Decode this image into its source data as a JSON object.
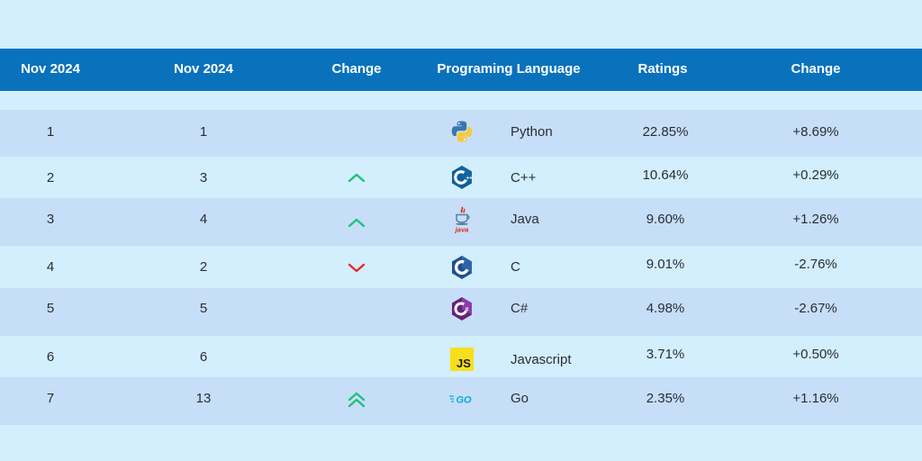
{
  "header": {
    "col1": "Nov 2024",
    "col2": "Nov 2024",
    "col3": "Change",
    "col4": "Programing Language",
    "col5": "Ratings",
    "col6": "Change"
  },
  "colors": {
    "header_bg": "#0a72bd",
    "row_dark": "#c7def8",
    "row_light": "#d3eefc",
    "arrow_up": "#1ec27a",
    "arrow_down": "#e52a2a"
  },
  "rows": [
    {
      "rank_now": "1",
      "rank_prev": "1",
      "change_icon": "none",
      "lang_icon": "python-logo-icon",
      "language": "Python",
      "rating": "22.85%",
      "change": "+8.69%"
    },
    {
      "rank_now": "2",
      "rank_prev": "3",
      "change_icon": "chevron-up-icon",
      "lang_icon": "cpp-logo-icon",
      "language": "C++",
      "rating": "10.64%",
      "change": "+0.29%"
    },
    {
      "rank_now": "3",
      "rank_prev": "4",
      "change_icon": "chevron-up-icon",
      "lang_icon": "java-logo-icon",
      "language": "Java",
      "rating": "9.60%",
      "change": "+1.26%"
    },
    {
      "rank_now": "4",
      "rank_prev": "2",
      "change_icon": "chevron-down-icon",
      "lang_icon": "c-logo-icon",
      "language": "C",
      "rating": "9.01%",
      "change": "-2.76%"
    },
    {
      "rank_now": "5",
      "rank_prev": "5",
      "change_icon": "none",
      "lang_icon": "csharp-logo-icon",
      "language": "C#",
      "rating": "4.98%",
      "change": "-2.67%"
    },
    {
      "rank_now": "6",
      "rank_prev": "6",
      "change_icon": "none",
      "lang_icon": "javascript-logo-icon",
      "language": "Javascript",
      "rating": "3.71%",
      "change": "+0.50%"
    },
    {
      "rank_now": "7",
      "rank_prev": "13",
      "change_icon": "double-chevron-up-icon",
      "lang_icon": "go-logo-icon",
      "language": "Go",
      "rating": "2.35%",
      "change": "+1.16%"
    }
  ],
  "java_logo_text": "Java",
  "js_logo_text": "JS",
  "go_logo_text": "GO",
  "cpp_logo_text": "C++",
  "c_logo_text": "C",
  "csharp_logo_text": "C#"
}
